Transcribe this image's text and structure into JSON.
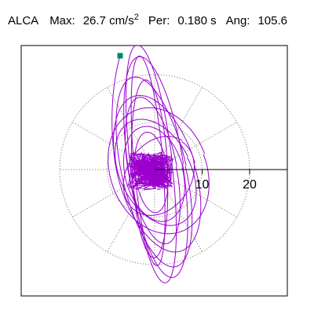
{
  "header": {
    "station": "ALCA",
    "max_label": "Max:",
    "max_value": "26.7 cm/s",
    "max_exp": "2",
    "per_label": "Per:",
    "per_value": "0.180 s",
    "ang_label": "Ang:",
    "ang_value": "105.6"
  },
  "chart_data": {
    "type": "polar-orbit",
    "radial_ticks": [
      "10",
      "20"
    ],
    "radial_tick_values": [
      10,
      20
    ],
    "rings": [
      10,
      20
    ],
    "spoke_angles_deg": [
      0,
      30,
      60,
      90,
      120,
      150,
      180,
      210,
      240,
      270,
      300,
      330
    ],
    "peak_value": 26.7,
    "peak_units": "cm/s²",
    "period_s": 0.18,
    "angle_deg": 105.6,
    "colors": {
      "trace": "#9900cc",
      "grid": "#7f7f7f",
      "axis": "#000000",
      "marker": "#008866"
    }
  }
}
